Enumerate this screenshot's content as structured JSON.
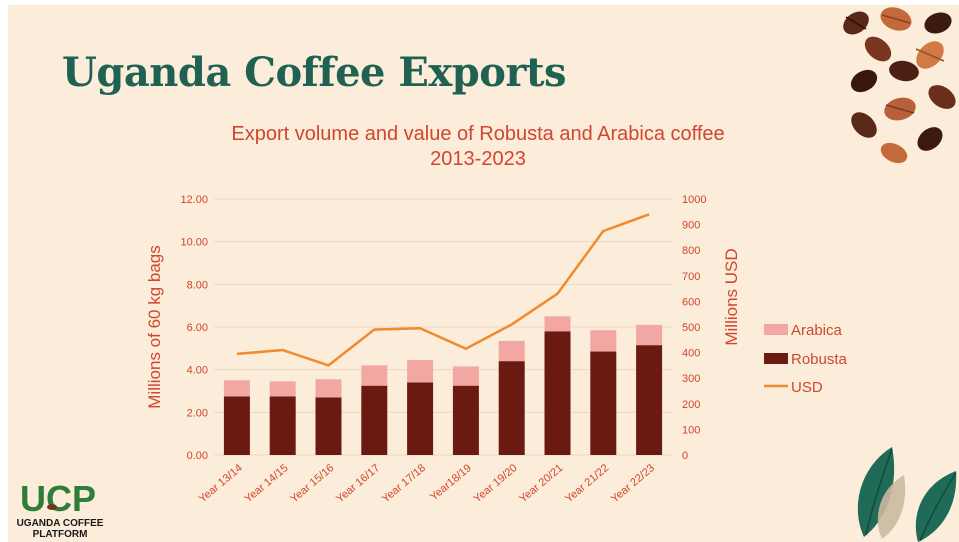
{
  "slide": {
    "title": "Uganda Coffee Exports",
    "logo": {
      "wordmark": "UCP",
      "line1": "UGANDA COFFEE",
      "line2": "PLATFORM"
    },
    "colors": {
      "background": "#fbedd9",
      "title": "#1f6153",
      "chart_text": "#d2452e"
    }
  },
  "chart_data": {
    "type": "bar",
    "stacked": true,
    "title_lines": [
      "Export volume and value of Robusta and Arabica coffee",
      "2013-2023"
    ],
    "categories": [
      "Year 13/14",
      "Year 14/15",
      "Year 15/16",
      "Year 16/17",
      "Year 17/18",
      "Year18/19",
      "Year 19/20",
      "Year 20/21",
      "Year 21/22",
      "Year 22/23"
    ],
    "ylabel": "Millions of 60 kg bags",
    "ylabel_right": "Millions USD",
    "ylim": [
      0,
      12
    ],
    "ylim_right": [
      0,
      1000
    ],
    "y_ticks": [
      "0.00",
      "2.00",
      "4.00",
      "6.00",
      "8.00",
      "10.00",
      "12.00"
    ],
    "y_ticks_right": [
      "0",
      "100",
      "200",
      "300",
      "400",
      "500",
      "600",
      "700",
      "800",
      "900",
      "1000"
    ],
    "series": [
      {
        "name": "Robusta",
        "type": "bar",
        "axis": "left",
        "color": "#6b1a12",
        "values": [
          2.75,
          2.75,
          2.7,
          3.25,
          3.4,
          3.25,
          4.4,
          5.8,
          4.85,
          5.15
        ]
      },
      {
        "name": "Arabica",
        "type": "bar",
        "axis": "left",
        "color": "#f2a7a3",
        "values": [
          0.75,
          0.7,
          0.85,
          0.95,
          1.05,
          0.9,
          0.95,
          0.7,
          1.0,
          0.95
        ]
      },
      {
        "name": "USD",
        "type": "line",
        "axis": "right",
        "color": "#f08a2c",
        "values": [
          395,
          410,
          350,
          490,
          495,
          415,
          510,
          630,
          875,
          940
        ]
      }
    ],
    "legend": [
      "Arabica",
      "Robusta",
      "USD"
    ],
    "legend_position": "right",
    "grid": true
  }
}
